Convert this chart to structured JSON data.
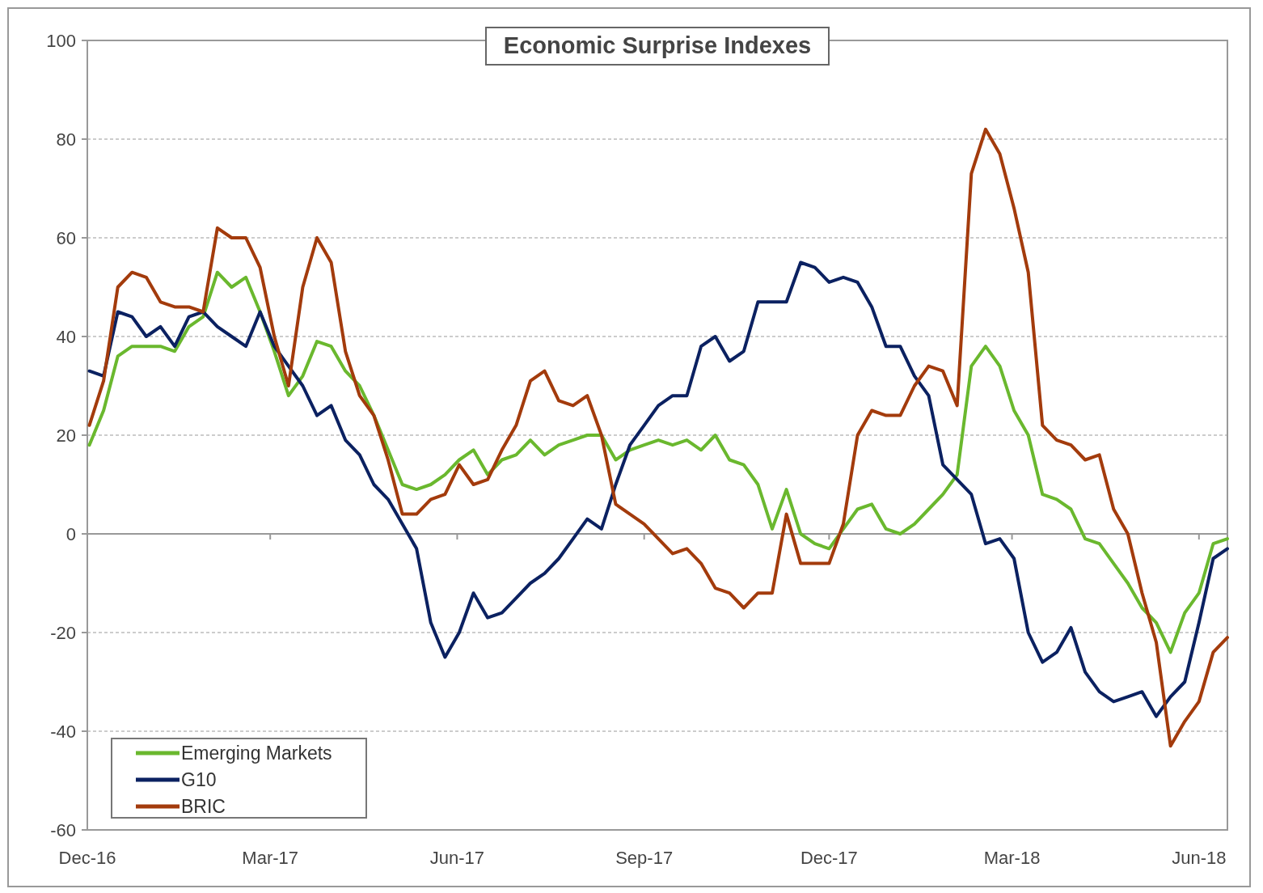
{
  "chart_data": {
    "type": "line",
    "title": "Economic Surprise Indexes",
    "x": [
      "2016-12-02",
      "2016-12-09",
      "2016-12-16",
      "2016-12-23",
      "2016-12-30",
      "2017-01-06",
      "2017-01-13",
      "2017-01-20",
      "2017-01-27",
      "2017-02-03",
      "2017-02-10",
      "2017-02-17",
      "2017-02-24",
      "2017-03-03",
      "2017-03-10",
      "2017-03-17",
      "2017-03-24",
      "2017-03-31",
      "2017-04-07",
      "2017-04-14",
      "2017-04-21",
      "2017-04-28",
      "2017-05-05",
      "2017-05-12",
      "2017-05-19",
      "2017-05-26",
      "2017-06-02",
      "2017-06-09",
      "2017-06-16",
      "2017-06-23",
      "2017-06-30",
      "2017-07-07",
      "2017-07-14",
      "2017-07-21",
      "2017-07-28",
      "2017-08-04",
      "2017-08-11",
      "2017-08-18",
      "2017-08-25",
      "2017-09-01",
      "2017-09-08",
      "2017-09-15",
      "2017-09-22",
      "2017-09-29",
      "2017-10-06",
      "2017-10-13",
      "2017-10-20",
      "2017-10-27",
      "2017-11-03",
      "2017-11-10",
      "2017-11-17",
      "2017-11-24",
      "2017-12-01",
      "2017-12-08",
      "2017-12-15",
      "2017-12-22",
      "2017-12-29",
      "2018-01-05",
      "2018-01-12",
      "2018-01-19",
      "2018-01-26",
      "2018-02-02",
      "2018-02-09",
      "2018-02-16",
      "2018-02-23",
      "2018-03-02",
      "2018-03-09",
      "2018-03-16",
      "2018-03-23",
      "2018-03-30",
      "2018-04-06",
      "2018-04-13",
      "2018-04-20",
      "2018-04-27",
      "2018-05-04",
      "2018-05-11",
      "2018-05-18",
      "2018-05-25",
      "2018-06-01",
      "2018-06-08",
      "2018-06-15"
    ],
    "series": [
      {
        "name": "Emerging Markets",
        "color": "#6ab82e",
        "values": [
          18,
          25,
          36,
          38,
          38,
          38,
          37,
          42,
          44,
          53,
          50,
          52,
          45,
          37,
          28,
          32,
          39,
          38,
          33,
          30,
          24,
          17,
          10,
          9,
          10,
          12,
          15,
          17,
          12,
          15,
          16,
          19,
          16,
          18,
          19,
          20,
          20,
          15,
          17,
          18,
          19,
          18,
          19,
          17,
          20,
          15,
          14,
          10,
          1,
          9,
          0,
          -2,
          -3,
          1,
          5,
          6,
          1,
          0,
          2,
          5,
          8,
          12,
          34,
          38,
          34,
          25,
          20,
          8,
          7,
          5,
          -1,
          -2,
          -6,
          -10,
          -15,
          -18,
          -24,
          -16,
          -12,
          -2,
          -1
        ]
      },
      {
        "name": "G10",
        "color": "#0b2161",
        "values": [
          33,
          32,
          45,
          44,
          40,
          42,
          38,
          44,
          45,
          42,
          40,
          38,
          45,
          38,
          34,
          30,
          24,
          26,
          19,
          16,
          10,
          7,
          2,
          -3,
          -18,
          -25,
          -20,
          -12,
          -17,
          -16,
          -13,
          -10,
          -8,
          -5,
          -1,
          3,
          1,
          10,
          18,
          22,
          26,
          28,
          28,
          38,
          40,
          35,
          37,
          47,
          47,
          47,
          55,
          54,
          51,
          52,
          51,
          46,
          38,
          38,
          32,
          28,
          14,
          11,
          8,
          -2,
          -1,
          -5,
          -20,
          -26,
          -24,
          -19,
          -28,
          -32,
          -34,
          -33,
          -32,
          -37,
          -33,
          -30,
          -18,
          -5,
          -3
        ]
      },
      {
        "name": "BRIC",
        "color": "#a33b0c",
        "values": [
          22,
          31,
          50,
          53,
          52,
          47,
          46,
          46,
          45,
          62,
          60,
          60,
          54,
          40,
          30,
          50,
          60,
          55,
          37,
          28,
          24,
          15,
          4,
          4,
          7,
          8,
          14,
          10,
          11,
          17,
          22,
          31,
          33,
          27,
          26,
          28,
          20,
          6,
          4,
          2,
          -1,
          -4,
          -3,
          -6,
          -11,
          -12,
          -15,
          -12,
          -12,
          4,
          -6,
          -6,
          -6,
          2,
          20,
          25,
          24,
          24,
          30,
          34,
          33,
          26,
          73,
          82,
          77,
          66,
          53,
          22,
          19,
          18,
          15,
          16,
          5,
          0,
          -12,
          -22,
          -43,
          -38,
          -34,
          -24,
          -21
        ]
      }
    ],
    "xlim": [
      "2016-12-01",
      "2018-06-15"
    ],
    "xticks": [
      {
        "value": "2016-12-01",
        "label": "Dec-16"
      },
      {
        "value": "2017-03-01",
        "label": "Mar-17"
      },
      {
        "value": "2017-06-01",
        "label": "Jun-17"
      },
      {
        "value": "2017-09-01",
        "label": "Sep-17"
      },
      {
        "value": "2017-12-01",
        "label": "Dec-17"
      },
      {
        "value": "2018-03-01",
        "label": "Mar-18"
      },
      {
        "value": "2018-06-01",
        "label": "Jun-18"
      }
    ],
    "ylim": [
      -60,
      100
    ],
    "yticks": [
      -60,
      -40,
      -20,
      0,
      20,
      40,
      60,
      80,
      100
    ],
    "grid": "y",
    "legend": "bottom left",
    "marker": "none",
    "line_style": "solid"
  }
}
